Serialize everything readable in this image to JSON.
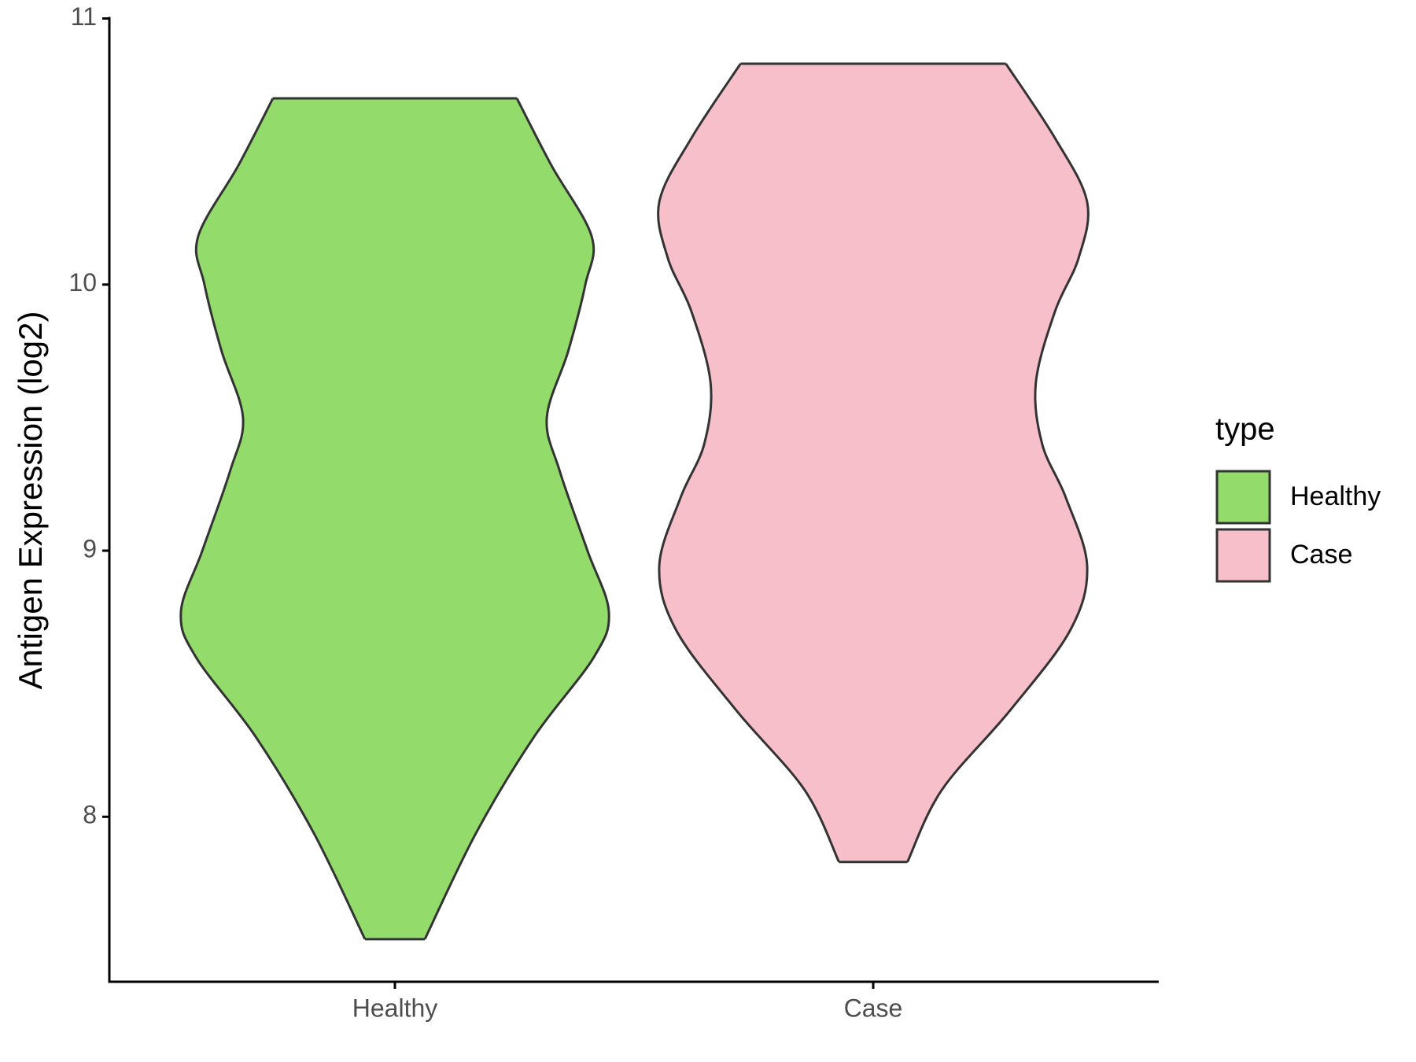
{
  "chart_data": {
    "type": "violin",
    "y_label": "Antigen Expression (log2)",
    "categories": [
      "Healthy",
      "Case"
    ],
    "ylim": [
      7.38,
      11
    ],
    "yticks": [
      8,
      9,
      10,
      11
    ],
    "legend_title": "type",
    "legend": "right",
    "series": [
      {
        "name": "Healthy",
        "color": "#93dc6b",
        "y": [
          7.54,
          7.94,
          8.3,
          8.6,
          8.77,
          9.0,
          9.3,
          9.5,
          9.75,
          10.0,
          10.18,
          10.45,
          10.7
        ],
        "density": [
          0.14,
          0.38,
          0.65,
          0.93,
          1.0,
          0.9,
          0.77,
          0.71,
          0.81,
          0.89,
          0.92,
          0.73,
          0.57
        ]
      },
      {
        "name": "Case",
        "color": "#f7bfca",
        "y": [
          7.83,
          8.1,
          8.4,
          8.7,
          8.94,
          9.2,
          9.4,
          9.63,
          9.9,
          10.1,
          10.31,
          10.55,
          10.83
        ],
        "density": [
          0.16,
          0.32,
          0.64,
          0.92,
          1.0,
          0.9,
          0.79,
          0.76,
          0.85,
          0.96,
          1.0,
          0.85,
          0.62
        ]
      }
    ]
  }
}
